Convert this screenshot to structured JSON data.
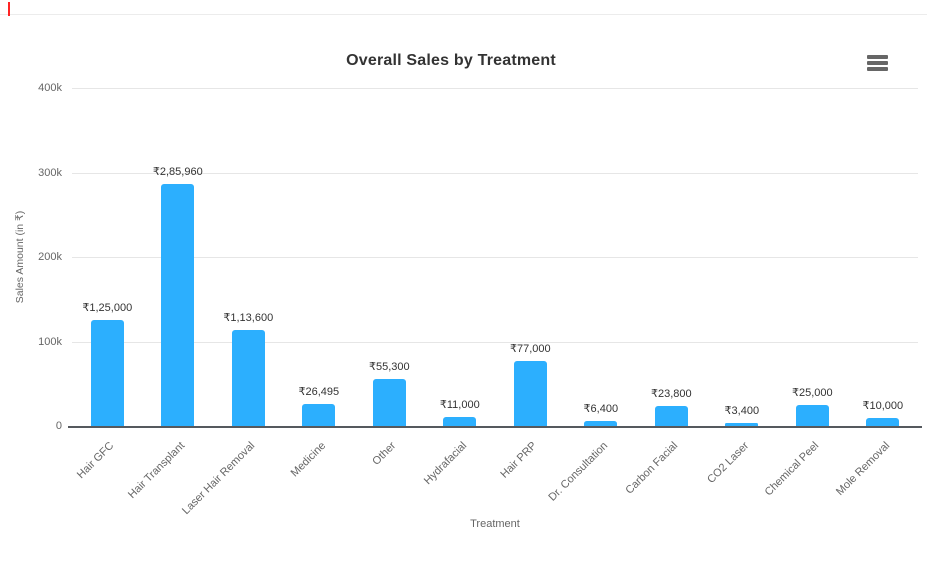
{
  "page": {
    "stray_mark_color": "#ff2424",
    "top_hairline_color": "#ececec"
  },
  "chart_data": {
    "type": "bar",
    "title": "Overall Sales by Treatment",
    "xlabel": "Treatment",
    "ylabel": "Sales Amount (in ₹)",
    "categories": [
      "Hair GFC",
      "Hair Transplant",
      "Laser Hair Removal",
      "Medicine",
      "Other",
      "Hydrafacial",
      "Hair PRP",
      "Dr. Consultation",
      "Carbon Facial",
      "CO2 Laser",
      "Chemical Peel",
      "Mole Removal"
    ],
    "values": [
      125000,
      285960,
      113600,
      26495,
      55300,
      11000,
      77000,
      6400,
      23800,
      3400,
      25000,
      10000
    ],
    "data_labels": [
      "₹1,25,000",
      "₹2,85,960",
      "₹1,13,600",
      "₹26,495",
      "₹55,300",
      "₹11,000",
      "₹77,000",
      "₹6,400",
      "₹23,800",
      "₹3,400",
      "₹25,000",
      "₹10,000"
    ],
    "y_ticks": [
      {
        "label": "400k",
        "value": 400000
      },
      {
        "label": "300k",
        "value": 300000
      },
      {
        "label": "200k",
        "value": 200000
      },
      {
        "label": "100k",
        "value": 100000
      },
      {
        "label": "0",
        "value": 0
      }
    ],
    "ylim": [
      0,
      400000
    ],
    "grid": true,
    "legend": "none",
    "menu_icon": "hamburger-icon",
    "colors": {
      "bar": "#2CAFFE",
      "grid": "#e6e6e6",
      "axis_line": "#55595e",
      "title_text": "#333333",
      "tick_text": "#666666",
      "data_label_text": "#333333"
    }
  }
}
